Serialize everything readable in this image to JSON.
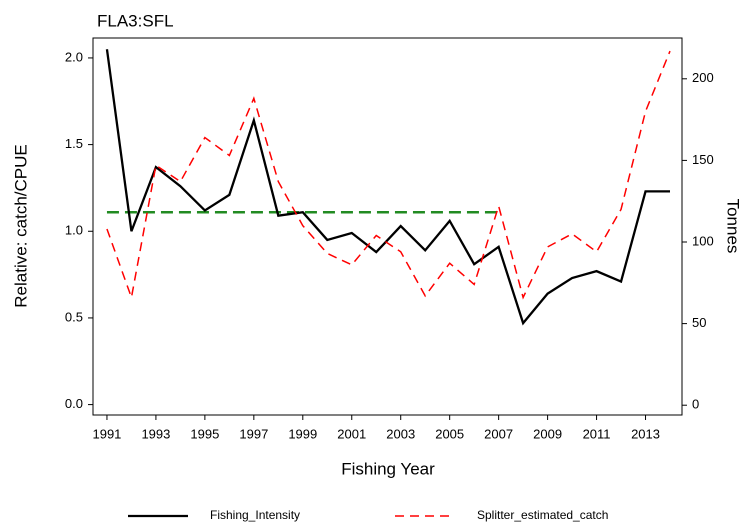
{
  "chart_data": {
    "type": "line",
    "title": "FLA3:SFL",
    "x_label": "Fishing Year",
    "y_label": "Relative: catch/CPUE",
    "y2_label": "Tonnes",
    "x": [
      1991,
      1992,
      1993,
      1994,
      1995,
      1996,
      1997,
      1998,
      1999,
      2000,
      2001,
      2002,
      2003,
      2004,
      2005,
      2006,
      2007,
      2008,
      2009,
      2010,
      2011,
      2012,
      2013,
      2014
    ],
    "xlim": [
      1990.43,
      2014.49
    ],
    "xticks": [
      1991,
      1993,
      1995,
      1997,
      1999,
      2001,
      2003,
      2005,
      2007,
      2009,
      2011,
      2013
    ],
    "ylim": [
      -0.06,
      2.115
    ],
    "yticks": [
      {
        "value": 0,
        "label": "0.0"
      },
      0.5,
      {
        "value": 1,
        "label": "1.0"
      },
      1.5,
      {
        "value": 2,
        "label": "2.0"
      }
    ],
    "y2lim": [
      -6,
      225
    ],
    "y2ticks": [
      0,
      50,
      100,
      150,
      200
    ],
    "series": [
      {
        "name": "Fishing_Intensity",
        "color": "#000000",
        "dash": "solid",
        "values": [
          2.05,
          1.0,
          1.37,
          1.26,
          1.12,
          1.21,
          1.64,
          1.09,
          1.11,
          0.95,
          0.99,
          0.88,
          1.03,
          0.89,
          1.06,
          0.81,
          0.91,
          0.47,
          0.64,
          0.73,
          0.77,
          0.71,
          1.23,
          1.23
        ]
      },
      {
        "name": "Splitter_estimated_catch",
        "color": "#ff0000",
        "dash": "dashed",
        "axis": "y2",
        "values": [
          108,
          66,
          147,
          137,
          164,
          153,
          188,
          137,
          110,
          93,
          86,
          104,
          94,
          67,
          87,
          74,
          122,
          66,
          97,
          105,
          94,
          120,
          180,
          217
        ]
      }
    ],
    "reference_line": {
      "value": 1.11,
      "x": [
        1991,
        2007
      ],
      "color": "#228b22"
    },
    "legend_position": "bottom"
  }
}
